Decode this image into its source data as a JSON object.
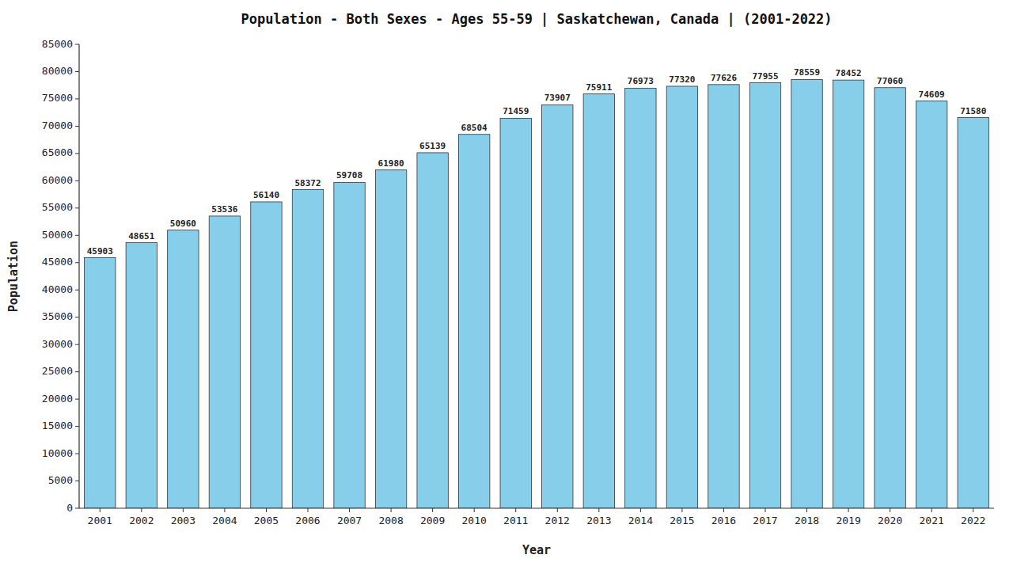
{
  "chart_data": {
    "type": "bar",
    "title": "Population - Both Sexes - Ages 55-59 | Saskatchewan, Canada |  (2001-2022)",
    "xlabel": "Year",
    "ylabel": "Population",
    "categories": [
      "2001",
      "2002",
      "2003",
      "2004",
      "2005",
      "2006",
      "2007",
      "2008",
      "2009",
      "2010",
      "2011",
      "2012",
      "2013",
      "2014",
      "2015",
      "2016",
      "2017",
      "2018",
      "2019",
      "2020",
      "2021",
      "2022"
    ],
    "values": [
      45903,
      48651,
      50960,
      53536,
      56140,
      58372,
      59708,
      61980,
      65139,
      68504,
      71459,
      73907,
      75911,
      76973,
      77320,
      77626,
      77955,
      78559,
      78452,
      77060,
      74609,
      71580
    ],
    "color": "#87ceeb",
    "ylim": [
      0,
      85000
    ],
    "yticks": [
      0,
      5000,
      10000,
      15000,
      20000,
      25000,
      30000,
      35000,
      40000,
      45000,
      50000,
      55000,
      60000,
      65000,
      70000,
      75000,
      80000,
      85000
    ],
    "grid": false,
    "data_labels": true
  }
}
